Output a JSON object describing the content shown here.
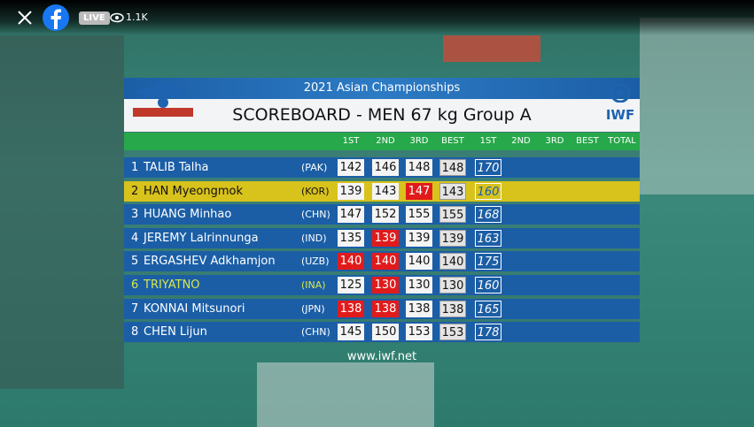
{
  "live_bar": {
    "live": "LIVE",
    "viewers": "1.1K"
  },
  "scoreboard": {
    "event": "2021 Asian Championships",
    "title": "SCOREBOARD - MEN 67 kg Group A",
    "logo": "IWF",
    "columns": [
      "1ST",
      "2ND",
      "3RD",
      "BEST",
      "1ST",
      "2ND",
      "3RD",
      "BEST",
      "TOTAL"
    ],
    "rows": [
      {
        "rank": "1",
        "name": "TALIB Talha",
        "country": "(PAK)",
        "style": "normal",
        "snatch": [
          {
            "value": 142,
            "good": true
          },
          {
            "value": 146,
            "good": true
          },
          {
            "value": 148,
            "good": true
          }
        ],
        "best": 148,
        "cj": [
          170
        ]
      },
      {
        "rank": "2",
        "name": "HAN Myeongmok",
        "country": "(KOR)",
        "style": "current",
        "snatch": [
          {
            "value": 139,
            "good": true
          },
          {
            "value": 143,
            "good": true
          },
          {
            "value": 147,
            "good": false
          }
        ],
        "best": 143,
        "cj": [
          160
        ]
      },
      {
        "rank": "3",
        "name": "HUANG Minhao",
        "country": "(CHN)",
        "style": "normal",
        "snatch": [
          {
            "value": 147,
            "good": true
          },
          {
            "value": 152,
            "good": true
          },
          {
            "value": 155,
            "good": true
          }
        ],
        "best": 155,
        "cj": [
          168
        ]
      },
      {
        "rank": "4",
        "name": "JEREMY Lalrinnunga",
        "country": "(IND)",
        "style": "normal",
        "snatch": [
          {
            "value": 135,
            "good": true
          },
          {
            "value": 139,
            "good": false
          },
          {
            "value": 139,
            "good": true
          }
        ],
        "best": 139,
        "cj": [
          163
        ]
      },
      {
        "rank": "5",
        "name": "ERGASHEV Adkhamjon",
        "country": "(UZB)",
        "style": "normal",
        "snatch": [
          {
            "value": 140,
            "good": false
          },
          {
            "value": 140,
            "good": false
          },
          {
            "value": 140,
            "good": true
          }
        ],
        "best": 140,
        "cj": [
          175
        ]
      },
      {
        "rank": "6",
        "name": "TRIYATNO",
        "country": "(INA)",
        "style": "next",
        "snatch": [
          {
            "value": 125,
            "good": true
          },
          {
            "value": 130,
            "good": false
          },
          {
            "value": 130,
            "good": true
          }
        ],
        "best": 130,
        "cj": [
          160
        ]
      },
      {
        "rank": "7",
        "name": "KONNAI Mitsunori",
        "country": "(JPN)",
        "style": "normal",
        "snatch": [
          {
            "value": 138,
            "good": false
          },
          {
            "value": 138,
            "good": false
          },
          {
            "value": 138,
            "good": true
          }
        ],
        "best": 138,
        "cj": [
          165
        ]
      },
      {
        "rank": "8",
        "name": "CHEN Lijun",
        "country": "(CHN)",
        "style": "normal",
        "snatch": [
          {
            "value": 145,
            "good": true
          },
          {
            "value": 150,
            "good": true
          },
          {
            "value": 153,
            "good": true
          }
        ],
        "best": 153,
        "cj": [
          178
        ]
      }
    ],
    "footer": "www.iwf.net"
  }
}
